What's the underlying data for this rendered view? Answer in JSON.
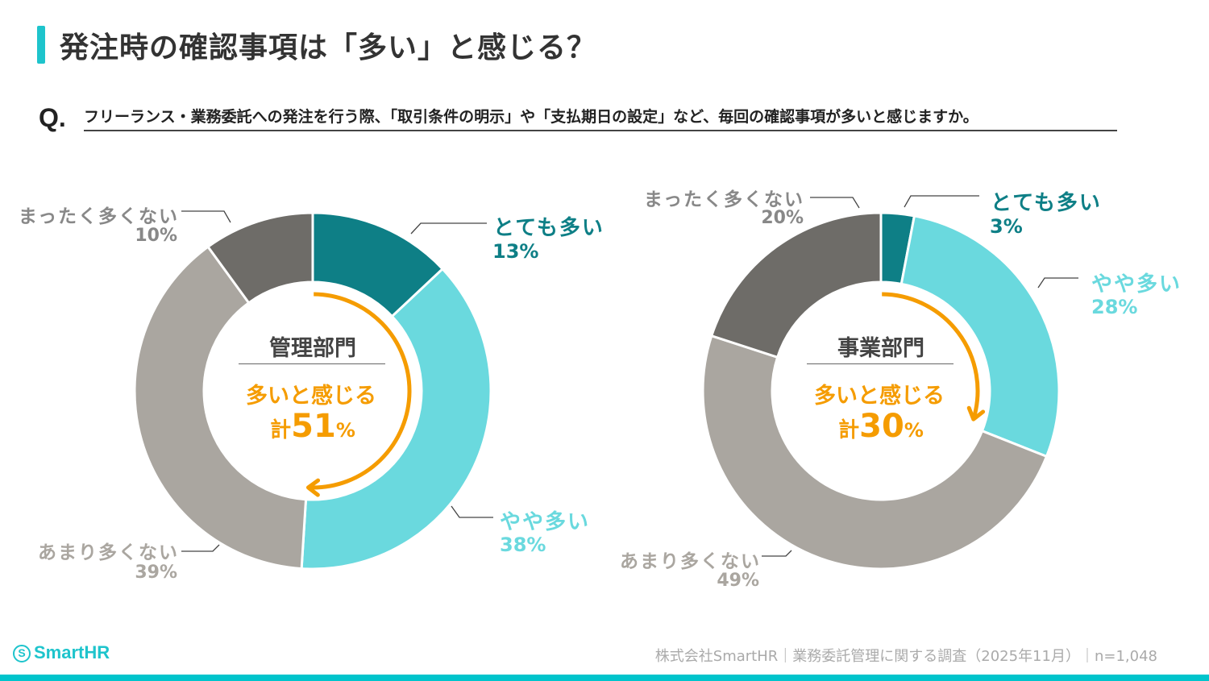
{
  "title": "発注時の確認事項は「多い」と感じる？",
  "question": {
    "mark": "Q.",
    "text": "フリーランス・業務委託への発注を行う際、「取引条件の明示」や「支払期日の設定」など、毎回の確認事項が多いと感じますか。"
  },
  "colors": {
    "accent": "#1ec4cc",
    "orange": "#f59c00"
  },
  "chart_data": [
    {
      "type": "pie",
      "subtype": "donut",
      "title": "管理部門",
      "categories": [
        "とても多い",
        "やや多い",
        "あまり多くない",
        "まったく多くない"
      ],
      "values": [
        13,
        38,
        39,
        10
      ],
      "colors": [
        "#0e7f86",
        "#6ad9de",
        "#aaa6a0",
        "#6e6c68"
      ],
      "labels": [
        "13%",
        "38%",
        "39%",
        "10%"
      ],
      "center": {
        "label": "多いと感じる",
        "total_prefix": "計",
        "total_value": "51",
        "total_unit": "%",
        "total": 51
      }
    },
    {
      "type": "pie",
      "subtype": "donut",
      "title": "事業部門",
      "categories": [
        "とても多い",
        "やや多い",
        "あまり多くない",
        "まったく多くない"
      ],
      "values": [
        3,
        28,
        49,
        20
      ],
      "colors": [
        "#0e7f86",
        "#6ad9de",
        "#aaa6a0",
        "#6e6c68"
      ],
      "labels": [
        "3%",
        "28%",
        "49%",
        "20%"
      ],
      "center": {
        "label": "多いと感じる",
        "total_prefix": "計",
        "total_value": "30",
        "total_unit": "%",
        "total": 30
      }
    }
  ],
  "footer": {
    "logo": "SmartHR",
    "logo_icon": "S",
    "source": "株式会社SmartHR｜業務委託管理に関する調査（2025年11月）｜n=1,048"
  }
}
